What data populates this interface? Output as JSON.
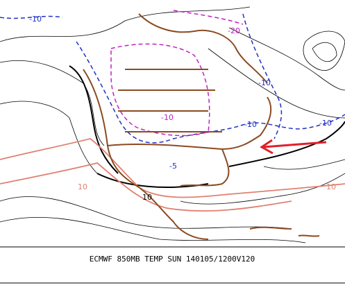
{
  "caption": "ECMWF 850MB TEMP SUN 140105/1200V120",
  "contour_labels": [
    "-10",
    "-20",
    "-10",
    "-10",
    "-10",
    "-10",
    "-5",
    "10",
    "10",
    "10"
  ]
}
